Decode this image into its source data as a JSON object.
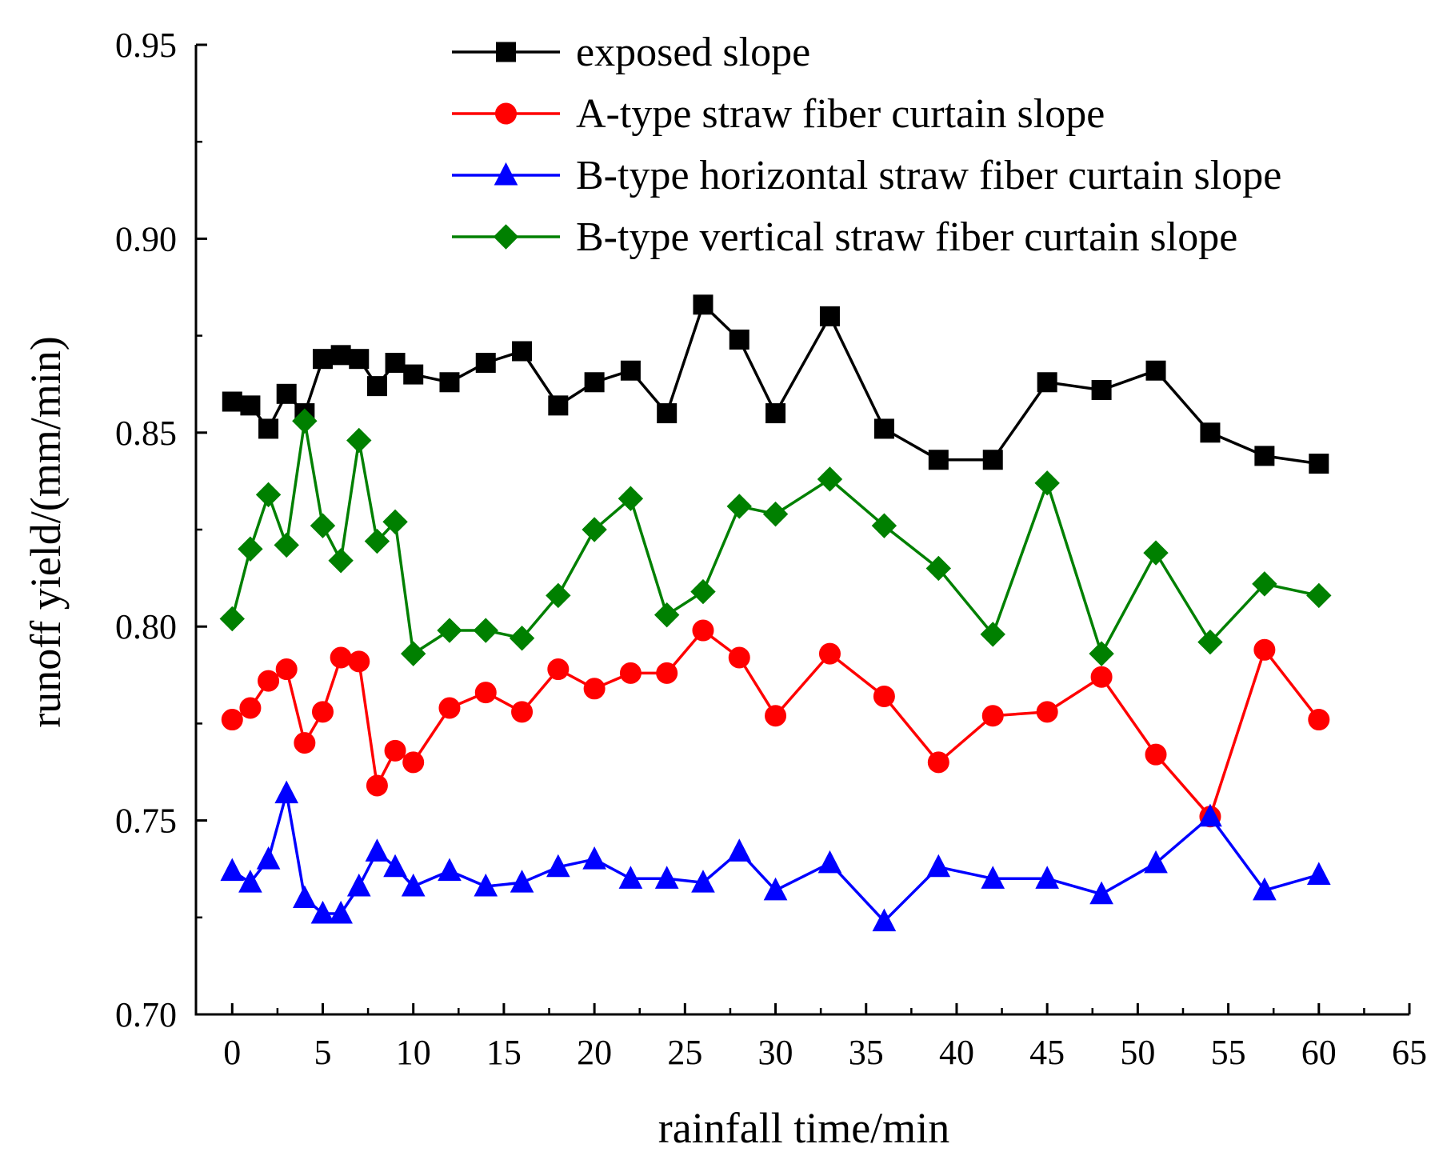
{
  "chart_data": {
    "type": "line",
    "title": "",
    "xlabel": "rainfall time/min",
    "ylabel": "runoff yield/(mm/min)",
    "xlim": [
      -2,
      65
    ],
    "ylim": [
      0.7,
      0.95
    ],
    "x_ticks": [
      0,
      5,
      10,
      15,
      20,
      25,
      30,
      35,
      40,
      45,
      50,
      55,
      60,
      65
    ],
    "x_tick_labels": [
      "0",
      "5",
      "10",
      "15",
      "20",
      "25",
      "30",
      "35",
      "40",
      "45",
      "50",
      "55",
      "60",
      "65"
    ],
    "y_ticks": [
      0.7,
      0.75,
      0.8,
      0.85,
      0.9,
      0.95
    ],
    "y_tick_labels": [
      "0.70",
      "0.75",
      "0.80",
      "0.85",
      "0.90",
      "0.95"
    ],
    "grid": false,
    "legend_position": "top",
    "series": [
      {
        "name": "exposed slope",
        "color": "#000000",
        "marker": "square",
        "x": [
          0,
          1,
          2,
          3,
          4,
          5,
          6,
          7,
          8,
          9,
          10,
          12,
          14,
          16,
          18,
          20,
          22,
          24,
          26,
          28,
          30,
          33,
          36,
          39,
          42,
          45,
          48,
          51,
          54,
          57,
          60
        ],
        "y": [
          0.858,
          0.857,
          0.851,
          0.86,
          0.855,
          0.869,
          0.87,
          0.869,
          0.862,
          0.868,
          0.865,
          0.863,
          0.868,
          0.871,
          0.857,
          0.863,
          0.866,
          0.855,
          0.883,
          0.874,
          0.855,
          0.88,
          0.851,
          0.843,
          0.843,
          0.863,
          0.861,
          0.866,
          0.85,
          0.844,
          0.842
        ]
      },
      {
        "name": "A-type straw fiber curtain slope",
        "color": "#ff0000",
        "marker": "circle",
        "x": [
          0,
          1,
          2,
          3,
          4,
          5,
          6,
          7,
          8,
          9,
          10,
          12,
          14,
          16,
          18,
          20,
          22,
          24,
          26,
          28,
          30,
          33,
          36,
          39,
          42,
          45,
          48,
          51,
          54,
          57,
          60
        ],
        "y": [
          0.776,
          0.779,
          0.786,
          0.789,
          0.77,
          0.778,
          0.792,
          0.791,
          0.759,
          0.768,
          0.765,
          0.779,
          0.783,
          0.778,
          0.789,
          0.784,
          0.788,
          0.788,
          0.799,
          0.792,
          0.777,
          0.793,
          0.782,
          0.765,
          0.777,
          0.778,
          0.787,
          0.767,
          0.751,
          0.794,
          0.776
        ]
      },
      {
        "name": "B-type horizontal straw fiber curtain slope",
        "color": "#0000ff",
        "marker": "triangle",
        "x": [
          0,
          1,
          2,
          3,
          4,
          5,
          6,
          7,
          8,
          9,
          10,
          12,
          14,
          16,
          18,
          20,
          22,
          24,
          26,
          28,
          30,
          33,
          36,
          39,
          42,
          45,
          48,
          51,
          54,
          57,
          60
        ],
        "y": [
          0.737,
          0.734,
          0.74,
          0.757,
          0.73,
          0.726,
          0.726,
          0.733,
          0.742,
          0.738,
          0.733,
          0.737,
          0.733,
          0.734,
          0.738,
          0.74,
          0.735,
          0.735,
          0.734,
          0.742,
          0.732,
          0.739,
          0.724,
          0.738,
          0.735,
          0.735,
          0.731,
          0.739,
          0.751,
          0.732,
          0.736
        ]
      },
      {
        "name": "B-type vertical straw fiber curtain slope",
        "color": "#008000",
        "marker": "diamond",
        "x": [
          0,
          1,
          2,
          3,
          4,
          5,
          6,
          7,
          8,
          9,
          10,
          12,
          14,
          16,
          18,
          20,
          22,
          24,
          26,
          28,
          30,
          33,
          36,
          39,
          42,
          45,
          48,
          51,
          54,
          57,
          60
        ],
        "y": [
          0.802,
          0.82,
          0.834,
          0.821,
          0.853,
          0.826,
          0.817,
          0.848,
          0.822,
          0.827,
          0.793,
          0.799,
          0.799,
          0.797,
          0.808,
          0.825,
          0.833,
          0.803,
          0.809,
          0.831,
          0.829,
          0.838,
          0.826,
          0.815,
          0.798,
          0.837,
          0.793,
          0.819,
          0.796,
          0.811,
          0.808
        ]
      }
    ]
  }
}
